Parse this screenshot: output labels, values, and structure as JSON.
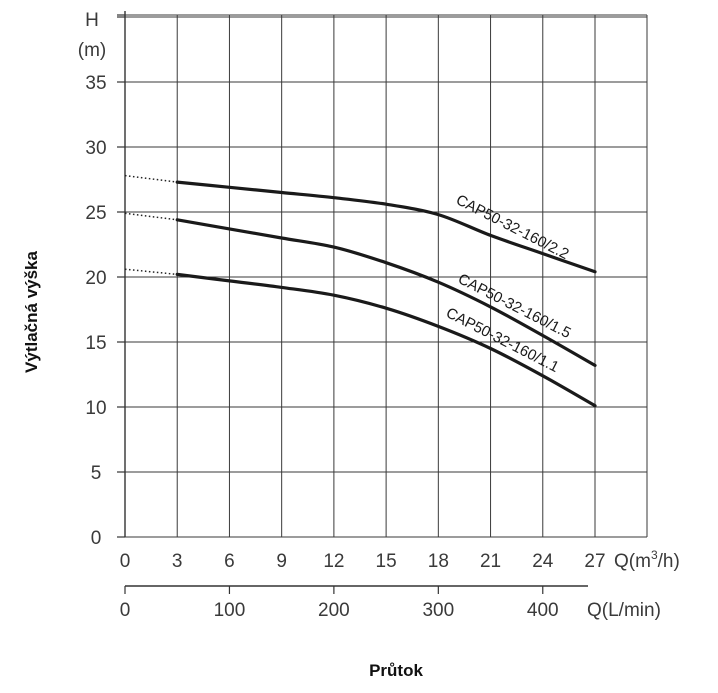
{
  "chart_data": {
    "type": "line",
    "title": "",
    "xlabel": "Průtok",
    "ylabel": "Výtlačná výška",
    "y_axis": {
      "label_top": "H",
      "label_unit": "(m)",
      "range": [
        0,
        40
      ],
      "ticks": [
        0,
        5,
        10,
        15,
        20,
        25,
        30,
        35
      ]
    },
    "x_axis_primary": {
      "unit_label": "Q(m³/h)",
      "unit_base": "Q(m",
      "unit_sup": "3",
      "unit_tail": "/h)",
      "range": [
        0,
        30
      ],
      "ticks": [
        0,
        3,
        6,
        9,
        12,
        15,
        18,
        21,
        24,
        27
      ]
    },
    "x_axis_secondary": {
      "unit_label": "Q(L/min)",
      "ticks": [
        0,
        100,
        200,
        300,
        400
      ],
      "ratio_to_primary": 16.667
    },
    "grid": true,
    "series": [
      {
        "name": "CAP50-32-160/2.2",
        "dotted_x": [
          0,
          3
        ],
        "dotted_y": [
          27.8,
          27.3
        ],
        "x": [
          3,
          6,
          9,
          12,
          15,
          18,
          21,
          24,
          27
        ],
        "y": [
          27.3,
          26.9,
          26.5,
          26.1,
          25.6,
          24.8,
          23.2,
          21.8,
          20.4
        ]
      },
      {
        "name": "CAP50-32-160/1.5",
        "dotted_x": [
          0,
          3
        ],
        "dotted_y": [
          24.9,
          24.4
        ],
        "x": [
          3,
          6,
          9,
          12,
          15,
          18,
          21,
          24,
          27
        ],
        "y": [
          24.4,
          23.7,
          23.0,
          22.3,
          21.1,
          19.6,
          17.7,
          15.5,
          13.2
        ]
      },
      {
        "name": "CAP50-32-160/1.1",
        "dotted_x": [
          0,
          3
        ],
        "dotted_y": [
          20.6,
          20.2
        ],
        "x": [
          3,
          6,
          9,
          12,
          15,
          18,
          21,
          24,
          27
        ],
        "y": [
          20.2,
          19.7,
          19.2,
          18.6,
          17.6,
          16.2,
          14.5,
          12.4,
          10.1
        ]
      }
    ]
  }
}
